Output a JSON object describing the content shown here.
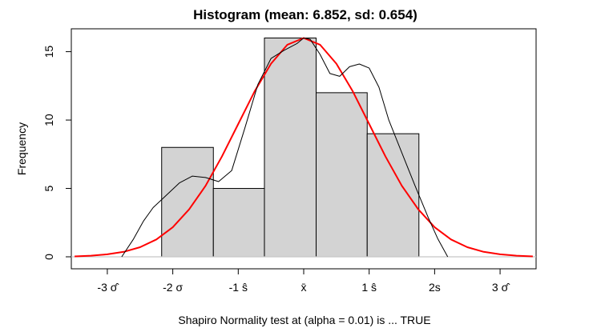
{
  "chart_data": {
    "type": "bar",
    "title": "Histogram (mean: 6.852, sd: 0.654)",
    "xlabel": "Shapiro Normality test at (alpha = 0.01) is ... TRUE",
    "ylabel": "Frequency",
    "ylim": [
      0,
      16.6
    ],
    "xlim": [
      -3.55,
      3.55
    ],
    "y_ticks": [
      0,
      5,
      10,
      15
    ],
    "x_ticks": [
      {
        "value": -3,
        "label": "-3 σ̂"
      },
      {
        "value": -2,
        "label": "-2 σ"
      },
      {
        "value": -1,
        "label": "-1 ŝ"
      },
      {
        "value": 0,
        "label": "x̄"
      },
      {
        "value": 1,
        "label": "1 ŝ"
      },
      {
        "value": 2,
        "label": "2s"
      },
      {
        "value": 3,
        "label": "3 σ̂"
      }
    ],
    "bars": [
      {
        "x0": -2.17,
        "x1": -1.38,
        "value": 8
      },
      {
        "x0": -1.38,
        "x1": -0.6,
        "value": 5
      },
      {
        "x0": -0.6,
        "x1": 0.19,
        "value": 16
      },
      {
        "x0": 0.19,
        "x1": 0.97,
        "value": 12
      },
      {
        "x0": 0.97,
        "x1": 1.76,
        "value": 9
      }
    ],
    "series": [
      {
        "type": "normal-curve",
        "color": "#ff0000",
        "x": [
          -3.5,
          -3.25,
          -3.0,
          -2.75,
          -2.5,
          -2.25,
          -2.0,
          -1.75,
          -1.5,
          -1.25,
          -1.0,
          -0.75,
          -0.5,
          -0.25,
          0.0,
          0.25,
          0.5,
          0.75,
          1.0,
          1.25,
          1.5,
          1.75,
          2.0,
          2.25,
          2.5,
          2.75,
          3.0,
          3.25,
          3.5
        ],
        "y": [
          0.03,
          0.08,
          0.18,
          0.36,
          0.7,
          1.27,
          2.16,
          3.47,
          5.19,
          7.33,
          9.71,
          12.09,
          14.12,
          15.51,
          16.0,
          15.51,
          14.12,
          12.09,
          9.71,
          7.33,
          5.19,
          3.47,
          2.16,
          1.27,
          0.7,
          0.36,
          0.18,
          0.08,
          0.03
        ]
      },
      {
        "type": "density",
        "color": "#000000",
        "x": [
          -2.78,
          -2.6,
          -2.45,
          -2.3,
          -2.1,
          -1.9,
          -1.7,
          -1.5,
          -1.3,
          -1.1,
          -0.9,
          -0.7,
          -0.5,
          -0.3,
          -0.1,
          0.0,
          0.1,
          0.25,
          0.4,
          0.55,
          0.7,
          0.85,
          1.0,
          1.15,
          1.3,
          1.5,
          1.7,
          1.9,
          2.05,
          2.2
        ],
        "y": [
          0.0,
          1.3,
          2.6,
          3.6,
          4.5,
          5.4,
          5.9,
          5.8,
          5.5,
          6.3,
          9.4,
          12.6,
          14.5,
          15.1,
          15.6,
          16.0,
          15.9,
          14.8,
          13.4,
          13.2,
          13.9,
          14.1,
          13.8,
          12.4,
          10.0,
          7.6,
          5.2,
          2.9,
          1.3,
          0.0
        ]
      }
    ]
  }
}
